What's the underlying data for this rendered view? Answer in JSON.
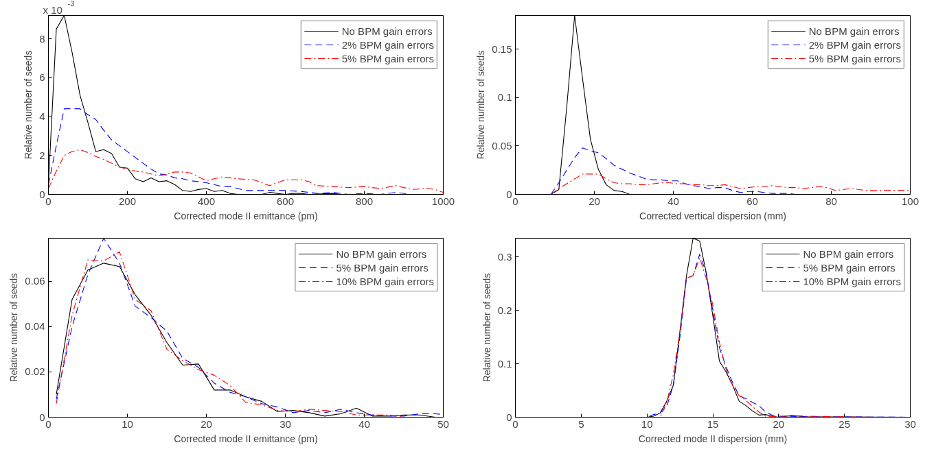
{
  "chart_data": [
    {
      "type": "line",
      "xlabel": "Corrected mode II emittance (pm)",
      "ylabel": "Relative number of seeds",
      "annotations": [
        "x 10$^{-3}$"
      ],
      "xlim": [
        0,
        1000
      ],
      "ylim": [
        0,
        9.2
      ],
      "xticks": [
        0,
        200,
        400,
        600,
        800,
        1000
      ],
      "yticks": [
        0,
        2,
        4,
        6,
        8
      ],
      "grid": false,
      "legend": "top right",
      "series": [
        {
          "name": "No BPM gain errors",
          "color": "#000000",
          "line_style": "solid",
          "x": [
            0,
            20,
            40,
            60,
            80,
            100,
            120,
            140,
            160,
            180,
            200,
            220,
            240,
            260,
            280,
            300,
            320,
            340,
            360,
            380,
            400,
            420,
            440,
            460,
            480,
            540,
            560,
            580,
            600,
            620,
            640,
            660,
            720,
            740,
            1000
          ],
          "values": [
            0.5,
            8.5,
            9.2,
            7.3,
            5.1,
            3.7,
            2.2,
            2.3,
            2.1,
            1.4,
            1.35,
            0.8,
            0.65,
            0.85,
            0.65,
            0.7,
            0.5,
            0.2,
            0.15,
            0.25,
            0.3,
            0.15,
            0.2,
            0.05,
            0,
            0,
            0.1,
            0.05,
            0,
            0.05,
            0.05,
            0,
            0.05,
            0,
            0
          ]
        },
        {
          "name": "2% BPM gain errors",
          "color": "#0000ff",
          "line_style": "dashed",
          "x": [
            0,
            20,
            40,
            60,
            80,
            100,
            120,
            140,
            160,
            180,
            200,
            220,
            240,
            260,
            280,
            300,
            320,
            340,
            360,
            380,
            400,
            420,
            440,
            460,
            480,
            500,
            520,
            540,
            560,
            600,
            640,
            680,
            720,
            760,
            800,
            840,
            880,
            920,
            1000
          ],
          "values": [
            0.5,
            2.5,
            4.4,
            4.4,
            4.4,
            4.1,
            3.85,
            3.3,
            2.8,
            2.5,
            2.2,
            1.9,
            1.6,
            1.3,
            1.05,
            1.0,
            0.85,
            0.8,
            0.7,
            0.65,
            0.6,
            0.5,
            0.4,
            0.4,
            0.3,
            0.2,
            0.2,
            0.2,
            0.2,
            0.2,
            0.15,
            0.05,
            0.1,
            0,
            0.05,
            0,
            0.1,
            0,
            0
          ]
        },
        {
          "name": "5% BPM gain errors",
          "color": "#ff0000",
          "line_style": "dashdot",
          "x": [
            0,
            20,
            40,
            60,
            80,
            100,
            120,
            140,
            160,
            180,
            200,
            220,
            240,
            260,
            280,
            300,
            320,
            340,
            360,
            380,
            400,
            420,
            440,
            460,
            480,
            520,
            560,
            580,
            600,
            640,
            660,
            680,
            720,
            760,
            800,
            840,
            880,
            920,
            960,
            980,
            1000
          ],
          "values": [
            0.3,
            1.2,
            2.0,
            2.2,
            2.3,
            2.15,
            1.95,
            1.8,
            1.6,
            1.4,
            1.3,
            1.2,
            1.15,
            1.05,
            0.95,
            1.05,
            1.15,
            1.15,
            1.1,
            0.9,
            0.7,
            0.8,
            0.9,
            0.85,
            0.8,
            0.75,
            0.45,
            0.6,
            0.75,
            0.75,
            0.65,
            0.45,
            0.4,
            0.35,
            0.4,
            0.3,
            0.45,
            0.25,
            0.3,
            0.25,
            0.1
          ]
        }
      ]
    },
    {
      "type": "line",
      "xlabel": "Corrected vertical dispersion (mm)",
      "ylabel": "Relative number of seeds",
      "xlim": [
        0,
        100
      ],
      "ylim": [
        0,
        0.185
      ],
      "xticks": [
        0,
        20,
        40,
        60,
        80,
        100
      ],
      "yticks": [
        0,
        0.05,
        0.1,
        0.15
      ],
      "grid": false,
      "legend": "top right",
      "series": [
        {
          "name": "No BPM gain errors",
          "color": "#000000",
          "line_style": "solid",
          "x": [
            1,
            9,
            11,
            13,
            15,
            17,
            19,
            21,
            23,
            25,
            27,
            29,
            100
          ],
          "values": [
            0,
            0,
            0.005,
            0.09,
            0.185,
            0.12,
            0.057,
            0.026,
            0.01,
            0.004,
            0.003,
            0,
            0
          ]
        },
        {
          "name": "2% BPM gain errors",
          "color": "#0000ff",
          "line_style": "dashed",
          "x": [
            9,
            11,
            13,
            15,
            17,
            19,
            21,
            23,
            25,
            27,
            29,
            31,
            33,
            35,
            37,
            39,
            41,
            43,
            45,
            47,
            49,
            51,
            53,
            55,
            57,
            59,
            61,
            63,
            65,
            69,
            71
          ],
          "values": [
            0,
            0.012,
            0.025,
            0.038,
            0.048,
            0.045,
            0.043,
            0.037,
            0.03,
            0.026,
            0.022,
            0.019,
            0.016,
            0.015,
            0.015,
            0.014,
            0.014,
            0.011,
            0.009,
            0.008,
            0.006,
            0.007,
            0.007,
            0.004,
            0.002,
            0.003,
            0.003,
            0.002,
            0.001,
            0.001,
            0
          ]
        },
        {
          "name": "5% BPM gain errors",
          "color": "#ff0000",
          "line_style": "dashdot",
          "x": [
            9,
            11,
            13,
            15,
            17,
            19,
            21,
            23,
            25,
            27,
            29,
            31,
            33,
            35,
            37,
            39,
            41,
            43,
            45,
            47,
            49,
            51,
            53,
            55,
            57,
            59,
            61,
            63,
            65,
            67,
            69,
            71,
            73,
            75,
            77,
            79,
            81,
            85,
            89,
            93,
            97,
            100
          ],
          "values": [
            0,
            0.006,
            0.011,
            0.016,
            0.021,
            0.021,
            0.021,
            0.016,
            0.012,
            0.011,
            0.011,
            0.01,
            0.01,
            0.011,
            0.012,
            0.012,
            0.011,
            0.011,
            0.01,
            0.01,
            0.009,
            0.009,
            0.01,
            0.008,
            0.006,
            0.007,
            0.008,
            0.008,
            0.009,
            0.008,
            0.007,
            0.007,
            0.006,
            0.007,
            0.008,
            0.007,
            0.004,
            0.006,
            0.004,
            0.004,
            0.004,
            0.004
          ]
        }
      ]
    },
    {
      "type": "line",
      "xlabel": "Corrected mode II emittance (pm)",
      "ylabel": "Relative number of seeds",
      "xlim": [
        0,
        50
      ],
      "ylim": [
        0,
        0.079
      ],
      "xticks": [
        0,
        10,
        20,
        30,
        40,
        50
      ],
      "yticks": [
        0,
        0.02,
        0.04,
        0.06
      ],
      "grid": false,
      "legend": "top right",
      "series": [
        {
          "name": "No BPM gain errors",
          "color": "#000000",
          "line_style": "solid",
          "x": [
            1,
            3,
            5,
            7,
            9,
            11,
            13,
            15,
            17,
            19,
            21,
            23,
            25,
            27,
            29,
            31,
            33,
            35,
            37,
            39,
            41,
            43,
            45,
            47,
            49,
            50
          ],
          "values": [
            0.01,
            0.052,
            0.065,
            0.068,
            0.0665,
            0.054,
            0.045,
            0.033,
            0.023,
            0.0235,
            0.012,
            0.012,
            0.009,
            0.007,
            0.0025,
            0.003,
            0.002,
            0.0005,
            0.0015,
            0.004,
            0.0005,
            0.0005,
            0.001,
            0.001,
            0,
            0
          ]
        },
        {
          "name": "5% BPM gain errors",
          "color": "#0000ff",
          "line_style": "dashed",
          "x": [
            1,
            3,
            5,
            7,
            9,
            11,
            13,
            15,
            17,
            19,
            21,
            23,
            25,
            27,
            29,
            31,
            33,
            35,
            37,
            39,
            41,
            43,
            45,
            47,
            49,
            50
          ],
          "values": [
            0.008,
            0.04,
            0.063,
            0.079,
            0.068,
            0.049,
            0.044,
            0.038,
            0.026,
            0.022,
            0.015,
            0.011,
            0.009,
            0.006,
            0.0045,
            0.002,
            0.003,
            0.002,
            0.0035,
            0.002,
            0.001,
            0.0005,
            0.0005,
            0.0015,
            0.0015,
            0.0012
          ]
        },
        {
          "name": "10% BPM gain errors",
          "color": "#ff0000",
          "line_style": "dashdot",
          "x": [
            1,
            3,
            5,
            7,
            9,
            11,
            13,
            15,
            17,
            19,
            21,
            23,
            25,
            27,
            29,
            31,
            33,
            35,
            37,
            39,
            41,
            43,
            45,
            47
          ],
          "values": [
            0.006,
            0.045,
            0.0695,
            0.069,
            0.073,
            0.052,
            0.047,
            0.03,
            0.025,
            0.021,
            0.0185,
            0.014,
            0.0065,
            0.0055,
            0.003,
            0.0025,
            0.0035,
            0.003,
            0.0025,
            0.001,
            0.001,
            0.001,
            0,
            0
          ]
        }
      ]
    },
    {
      "type": "line",
      "xlabel": "Corrected mode II dispersion (mm)",
      "ylabel": "Relative number of seeds",
      "xlim": [
        0,
        30
      ],
      "ylim": [
        0,
        0.335
      ],
      "xticks": [
        0,
        5,
        10,
        15,
        20,
        25,
        30
      ],
      "yticks": [
        0,
        0.1,
        0.2,
        0.3
      ],
      "grid": false,
      "legend": "top right",
      "series": [
        {
          "name": "No BPM gain errors",
          "color": "#000000",
          "line_style": "solid",
          "x": [
            1,
            10,
            10.5,
            11,
            11.5,
            12,
            12.5,
            13,
            13.5,
            14,
            14.5,
            15,
            15.5,
            16,
            16.5,
            17,
            17.5,
            18,
            18.5,
            19,
            19.5,
            20,
            21,
            22,
            30
          ],
          "values": [
            0,
            0,
            0.002,
            0.008,
            0.03,
            0.06,
            0.16,
            0.265,
            0.335,
            0.33,
            0.27,
            0.19,
            0.105,
            0.085,
            0.06,
            0.03,
            0.022,
            0.012,
            0.004,
            0.005,
            0.002,
            0,
            0.003,
            0.001,
            0
          ]
        },
        {
          "name": "5% BPM gain errors",
          "color": "#0000ff",
          "line_style": "dashed",
          "x": [
            1,
            10,
            10.5,
            11,
            11.5,
            12,
            12.5,
            13,
            13.5,
            14,
            14.5,
            15,
            15.5,
            16,
            16.5,
            17,
            17.5,
            18,
            18.5,
            19,
            19.5,
            20,
            22,
            30
          ],
          "values": [
            0,
            0,
            0.005,
            0.008,
            0.02,
            0.06,
            0.15,
            0.26,
            0.265,
            0.305,
            0.27,
            0.2,
            0.13,
            0.095,
            0.065,
            0.04,
            0.035,
            0.028,
            0.022,
            0.01,
            0.004,
            0.002,
            0.001,
            0
          ]
        },
        {
          "name": "10% BPM gain errors",
          "color": "#ff0000",
          "line_style": "dashdot",
          "x": [
            1,
            10,
            11,
            11.5,
            12,
            12.5,
            13,
            13.5,
            14,
            14.5,
            15,
            15.5,
            16,
            16.5,
            17,
            17.5,
            18,
            18.5,
            19,
            20,
            21,
            22,
            27,
            30
          ],
          "values": [
            0,
            0,
            0,
            0.028,
            0.08,
            0.16,
            0.26,
            0.265,
            0.298,
            0.26,
            0.21,
            0.14,
            0.09,
            0.06,
            0.04,
            0.032,
            0.02,
            0.01,
            0.002,
            0.001,
            0.003,
            0.002,
            0,
            0
          ]
        }
      ]
    }
  ]
}
